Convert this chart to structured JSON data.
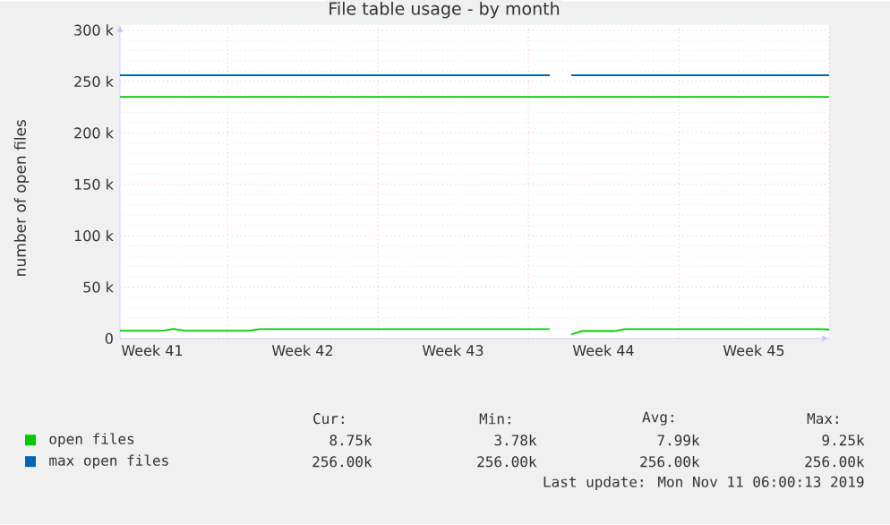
{
  "chart_data": {
    "type": "line",
    "title": "File table usage - by month",
    "ylabel": "number of open files",
    "categories": [
      null,
      null,
      null,
      "Week 41",
      null,
      null,
      null,
      null,
      null,
      null,
      null,
      null,
      null,
      null,
      null,
      null,
      null,
      "Week 42",
      null,
      null,
      null,
      null,
      null,
      null,
      null,
      null,
      null,
      null,
      null,
      null,
      null,
      "Week 43",
      null,
      null,
      null,
      null,
      null,
      null,
      null,
      null,
      null,
      null,
      null,
      null,
      null,
      "Week 44",
      null,
      null,
      null,
      null,
      null,
      null,
      null,
      null,
      null,
      null,
      null,
      null,
      null,
      "Week 45",
      null,
      null,
      null,
      null,
      null,
      null,
      null
    ],
    "ylim": [
      0,
      305000
    ],
    "yticks": [
      0,
      {
        "value": 50000,
        "label": "50 k"
      },
      {
        "value": 100000,
        "label": "100 k"
      },
      {
        "value": 150000,
        "label": "150 k"
      },
      {
        "value": 200000,
        "label": "200 k"
      },
      {
        "value": 250000,
        "label": "250 k"
      },
      {
        "value": 300000,
        "label": "300 k"
      }
    ],
    "grid": true,
    "legend": "bottom",
    "series": [
      {
        "name": "open files",
        "color": "#00cc00",
        "values": [
          7500,
          7500,
          7500,
          7500,
          7500,
          9250,
          7500,
          7500,
          7500,
          7500,
          7500,
          7500,
          7500,
          9000,
          9000,
          9000,
          9000,
          9000,
          9000,
          9000,
          9000,
          9000,
          9000,
          9000,
          9000,
          9000,
          9000,
          9000,
          9000,
          9000,
          9000,
          9000,
          9000,
          9000,
          9000,
          9000,
          9000,
          9000,
          9000,
          9000,
          9000,
          null,
          3780,
          7200,
          7200,
          7200,
          7200,
          9000,
          9000,
          9000,
          9000,
          9000,
          9000,
          9000,
          9000,
          9000,
          9000,
          9000,
          9000,
          9000,
          9000,
          9000,
          9000,
          9000,
          9000,
          9000,
          8750
        ]
      },
      {
        "name": "max open files",
        "color": "#0066b3",
        "values": [
          256000,
          256000,
          256000,
          256000,
          256000,
          256000,
          256000,
          256000,
          256000,
          256000,
          256000,
          256000,
          256000,
          256000,
          256000,
          256000,
          256000,
          256000,
          256000,
          256000,
          256000,
          256000,
          256000,
          256000,
          256000,
          256000,
          256000,
          256000,
          256000,
          256000,
          256000,
          256000,
          256000,
          256000,
          256000,
          256000,
          256000,
          256000,
          256000,
          256000,
          256000,
          null,
          256000,
          256000,
          256000,
          256000,
          256000,
          256000,
          256000,
          256000,
          256000,
          256000,
          256000,
          256000,
          256000,
          256000,
          256000,
          256000,
          256000,
          256000,
          256000,
          256000,
          256000,
          256000,
          256000,
          256000,
          256000
        ]
      }
    ],
    "ref_lines": [
      {
        "axis": "y",
        "value": 235000,
        "color": "#00cc00"
      }
    ],
    "annotations": [
      "Cur:",
      "Min:",
      "Avg:",
      "Max:",
      "8.75k",
      "3.78k",
      "7.99k",
      "9.25k",
      "256.00k",
      "256.00k",
      "256.00k",
      "256.00k",
      "Last update: Mon Nov 11 06:00:13 2019"
    ]
  }
}
